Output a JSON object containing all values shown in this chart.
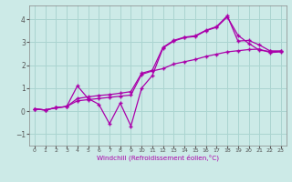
{
  "xlabel": "Windchill (Refroidissement éolien,°C)",
  "bg_color": "#cceae7",
  "grid_color": "#aad4d0",
  "line_color": "#aa00aa",
  "xlim": [
    -0.5,
    23.5
  ],
  "ylim": [
    -1.5,
    4.6
  ],
  "xticks": [
    0,
    1,
    2,
    3,
    4,
    5,
    6,
    7,
    8,
    9,
    10,
    11,
    12,
    13,
    14,
    15,
    16,
    17,
    18,
    19,
    20,
    21,
    22,
    23
  ],
  "yticks": [
    -1,
    0,
    1,
    2,
    3,
    4
  ],
  "line1_x": [
    0,
    1,
    2,
    3,
    4,
    5,
    6,
    7,
    8,
    9,
    10,
    11,
    12,
    13,
    14,
    15,
    16,
    17,
    18,
    19,
    20,
    21,
    22,
    23
  ],
  "line1_y": [
    0.1,
    0.05,
    0.15,
    0.2,
    1.1,
    0.55,
    0.3,
    -0.55,
    0.35,
    -0.65,
    1.0,
    1.55,
    2.75,
    3.05,
    3.2,
    3.25,
    3.5,
    3.65,
    4.1,
    3.3,
    2.95,
    2.65,
    2.6,
    2.6
  ],
  "line2_x": [
    0,
    1,
    2,
    3,
    4,
    5,
    6,
    7,
    8,
    9,
    10,
    11,
    12,
    13,
    14,
    15,
    16,
    17,
    18,
    19,
    20,
    21,
    22,
    23
  ],
  "line2_y": [
    0.1,
    0.05,
    0.15,
    0.2,
    0.45,
    0.5,
    0.55,
    0.6,
    0.65,
    0.7,
    1.6,
    1.75,
    1.85,
    2.05,
    2.15,
    2.25,
    2.38,
    2.48,
    2.58,
    2.63,
    2.68,
    2.7,
    2.55,
    2.58
  ],
  "line3_x": [
    0,
    1,
    2,
    3,
    4,
    5,
    6,
    7,
    8,
    9,
    10,
    11,
    12,
    13,
    14,
    15,
    16,
    17,
    18,
    19,
    20,
    21,
    22,
    23
  ],
  "line3_y": [
    0.1,
    0.05,
    0.15,
    0.2,
    0.55,
    0.62,
    0.68,
    0.72,
    0.78,
    0.85,
    1.65,
    1.78,
    2.78,
    3.08,
    3.22,
    3.28,
    3.52,
    3.68,
    4.15,
    3.05,
    3.08,
    2.88,
    2.62,
    2.62
  ]
}
